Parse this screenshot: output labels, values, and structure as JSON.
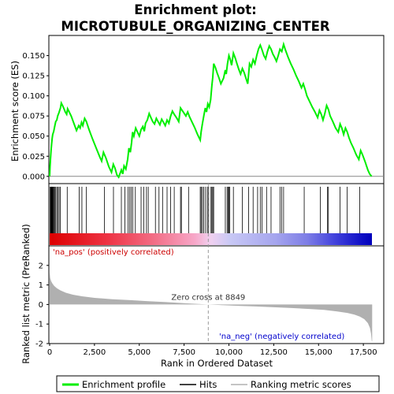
{
  "chart_data": [
    {
      "type": "line",
      "title_line1": "Enrichment plot:",
      "title_line2": "MICROTUBULE_ORGANIZING_CENTER",
      "ylabel": "Enrichment score (ES)",
      "ylim": [
        -0.009,
        0.175
      ],
      "yticks": [
        0.0,
        0.025,
        0.05,
        0.075,
        0.1,
        0.125,
        0.15
      ],
      "ytick_labels": [
        "0.000",
        "0.025",
        "0.050",
        "0.075",
        "0.100",
        "0.125",
        "0.150"
      ],
      "series": [
        {
          "name": "Enrichment profile",
          "color": "#00ee00",
          "points": [
            [
              0,
              0.0
            ],
            [
              20,
              0.012
            ],
            [
              50,
              0.022
            ],
            [
              80,
              0.032
            ],
            [
              110,
              0.04
            ],
            [
              140,
              0.047
            ],
            [
              170,
              0.052
            ],
            [
              230,
              0.056
            ],
            [
              280,
              0.062
            ],
            [
              340,
              0.068
            ],
            [
              400,
              0.07
            ],
            [
              450,
              0.075
            ],
            [
              520,
              0.079
            ],
            [
              600,
              0.085
            ],
            [
              650,
              0.091
            ],
            [
              720,
              0.088
            ],
            [
              800,
              0.084
            ],
            [
              870,
              0.08
            ],
            [
              950,
              0.077
            ],
            [
              1000,
              0.084
            ],
            [
              1070,
              0.081
            ],
            [
              1200,
              0.075
            ],
            [
              1350,
              0.066
            ],
            [
              1500,
              0.057
            ],
            [
              1620,
              0.063
            ],
            [
              1700,
              0.06
            ],
            [
              1780,
              0.067
            ],
            [
              1850,
              0.063
            ],
            [
              1950,
              0.072
            ],
            [
              2050,
              0.068
            ],
            [
              2200,
              0.058
            ],
            [
              2400,
              0.046
            ],
            [
              2600,
              0.035
            ],
            [
              2800,
              0.024
            ],
            [
              2900,
              0.019
            ],
            [
              3000,
              0.03
            ],
            [
              3150,
              0.022
            ],
            [
              3300,
              0.012
            ],
            [
              3450,
              0.005
            ],
            [
              3550,
              0.015
            ],
            [
              3650,
              0.01
            ],
            [
              3750,
              0.002
            ],
            [
              3850,
              -0.001
            ],
            [
              3950,
              0.005
            ],
            [
              4000,
              0.008
            ],
            [
              4080,
              0.003
            ],
            [
              4150,
              0.013
            ],
            [
              4250,
              0.009
            ],
            [
              4350,
              0.021
            ],
            [
              4420,
              0.035
            ],
            [
              4500,
              0.03
            ],
            [
              4570,
              0.042
            ],
            [
              4630,
              0.055
            ],
            [
              4700,
              0.05
            ],
            [
              4800,
              0.06
            ],
            [
              4900,
              0.055
            ],
            [
              5000,
              0.05
            ],
            [
              5100,
              0.058
            ],
            [
              5200,
              0.062
            ],
            [
              5280,
              0.056
            ],
            [
              5350,
              0.066
            ],
            [
              5450,
              0.07
            ],
            [
              5550,
              0.078
            ],
            [
              5650,
              0.073
            ],
            [
              5750,
              0.068
            ],
            [
              5850,
              0.065
            ],
            [
              5950,
              0.072
            ],
            [
              6050,
              0.068
            ],
            [
              6150,
              0.064
            ],
            [
              6250,
              0.071
            ],
            [
              6350,
              0.067
            ],
            [
              6450,
              0.063
            ],
            [
              6550,
              0.07
            ],
            [
              6650,
              0.066
            ],
            [
              6750,
              0.075
            ],
            [
              6850,
              0.081
            ],
            [
              6950,
              0.077
            ],
            [
              7100,
              0.072
            ],
            [
              7200,
              0.068
            ],
            [
              7300,
              0.085
            ],
            [
              7450,
              0.08
            ],
            [
              7600,
              0.075
            ],
            [
              7700,
              0.08
            ],
            [
              7800,
              0.074
            ],
            [
              7950,
              0.067
            ],
            [
              8100,
              0.06
            ],
            [
              8250,
              0.052
            ],
            [
              8400,
              0.045
            ],
            [
              8450,
              0.055
            ],
            [
              8520,
              0.065
            ],
            [
              8600,
              0.075
            ],
            [
              8680,
              0.085
            ],
            [
              8750,
              0.08
            ],
            [
              8820,
              0.09
            ],
            [
              8900,
              0.086
            ],
            [
              8980,
              0.095
            ],
            [
              9050,
              0.113
            ],
            [
              9100,
              0.123
            ],
            [
              9150,
              0.14
            ],
            [
              9250,
              0.135
            ],
            [
              9350,
              0.128
            ],
            [
              9450,
              0.122
            ],
            [
              9550,
              0.115
            ],
            [
              9700,
              0.122
            ],
            [
              9800,
              0.132
            ],
            [
              9850,
              0.127
            ],
            [
              9920,
              0.14
            ],
            [
              10000,
              0.15
            ],
            [
              10080,
              0.145
            ],
            [
              10150,
              0.138
            ],
            [
              10250,
              0.153
            ],
            [
              10350,
              0.147
            ],
            [
              10450,
              0.14
            ],
            [
              10550,
              0.133
            ],
            [
              10650,
              0.127
            ],
            [
              10750,
              0.134
            ],
            [
              10850,
              0.129
            ],
            [
              10950,
              0.122
            ],
            [
              11050,
              0.115
            ],
            [
              11150,
              0.14
            ],
            [
              11250,
              0.136
            ],
            [
              11350,
              0.145
            ],
            [
              11450,
              0.14
            ],
            [
              11550,
              0.15
            ],
            [
              11650,
              0.158
            ],
            [
              11750,
              0.163
            ],
            [
              11850,
              0.157
            ],
            [
              11950,
              0.15
            ],
            [
              12050,
              0.146
            ],
            [
              12150,
              0.155
            ],
            [
              12250,
              0.162
            ],
            [
              12350,
              0.158
            ],
            [
              12450,
              0.152
            ],
            [
              12550,
              0.148
            ],
            [
              12650,
              0.143
            ],
            [
              12750,
              0.15
            ],
            [
              12850,
              0.158
            ],
            [
              12950,
              0.155
            ],
            [
              13050,
              0.164
            ],
            [
              13150,
              0.157
            ],
            [
              13300,
              0.148
            ],
            [
              13450,
              0.14
            ],
            [
              13600,
              0.133
            ],
            [
              13750,
              0.125
            ],
            [
              13900,
              0.118
            ],
            [
              14050,
              0.11
            ],
            [
              14150,
              0.115
            ],
            [
              14250,
              0.108
            ],
            [
              14350,
              0.1
            ],
            [
              14500,
              0.093
            ],
            [
              14650,
              0.086
            ],
            [
              14800,
              0.08
            ],
            [
              14950,
              0.073
            ],
            [
              15050,
              0.082
            ],
            [
              15150,
              0.077
            ],
            [
              15250,
              0.07
            ],
            [
              15350,
              0.078
            ],
            [
              15450,
              0.088
            ],
            [
              15550,
              0.083
            ],
            [
              15650,
              0.075
            ],
            [
              15800,
              0.068
            ],
            [
              15950,
              0.06
            ],
            [
              16100,
              0.055
            ],
            [
              16200,
              0.065
            ],
            [
              16300,
              0.06
            ],
            [
              16400,
              0.052
            ],
            [
              16500,
              0.06
            ],
            [
              16600,
              0.055
            ],
            [
              16700,
              0.048
            ],
            [
              16800,
              0.042
            ],
            [
              16950,
              0.035
            ],
            [
              17100,
              0.027
            ],
            [
              17250,
              0.021
            ],
            [
              17350,
              0.032
            ],
            [
              17450,
              0.027
            ],
            [
              17600,
              0.018
            ],
            [
              17750,
              0.008
            ],
            [
              17850,
              0.003
            ],
            [
              17960,
              0.0
            ]
          ]
        }
      ]
    },
    {
      "type": "hits",
      "series": [
        {
          "name": "Hits",
          "positions": [
            30,
            50,
            75,
            100,
            120,
            145,
            170,
            200,
            240,
            280,
            340,
            400,
            460,
            530,
            600,
            980,
            1650,
            1800,
            2050,
            3050,
            3560,
            4000,
            4200,
            4380,
            4470,
            4550,
            4640,
            4780,
            5100,
            5250,
            5400,
            5500,
            5900,
            6100,
            6300,
            6550,
            6750,
            6950,
            7300,
            7350,
            7750,
            8400,
            8450,
            8520,
            8600,
            8700,
            8800,
            8870,
            9000,
            9050,
            9100,
            9150,
            9800,
            9900,
            9950,
            10000,
            10050,
            10250,
            10750,
            11100,
            11350,
            11600,
            11750,
            11850,
            12100,
            12350,
            12850,
            12950,
            13050,
            14200,
            15100,
            15500,
            15550,
            16200,
            16600,
            17300
          ]
        }
      ]
    },
    {
      "type": "area",
      "xlabel": "Rank in Ordered Dataset",
      "ylabel": "Ranked list metric (PreRanked)",
      "ylim": [
        -2,
        3
      ],
      "yticks": [
        -2,
        -1,
        0,
        1,
        2
      ],
      "xlim": [
        0,
        18000
      ],
      "xticks": [
        0,
        2500,
        5000,
        7500,
        10000,
        12500,
        15000,
        17500
      ],
      "xtick_labels": [
        "0",
        "2,500",
        "5,000",
        "7,500",
        "10,000",
        "12,500",
        "15,000",
        "17,500"
      ],
      "zero_cross": 8849,
      "zero_cross_label": "Zero cross at 8849",
      "pos_label": "'na_pos' (positively correlated)",
      "neg_label": "'na_neg' (negatively correlated)",
      "series": [
        {
          "name": "Ranking metric scores",
          "color": "#b0b0b0",
          "points": [
            [
              0,
              1.65
            ],
            [
              30,
              1.35
            ],
            [
              80,
              1.2
            ],
            [
              150,
              1.08
            ],
            [
              250,
              0.95
            ],
            [
              400,
              0.83
            ],
            [
              600,
              0.72
            ],
            [
              900,
              0.6
            ],
            [
              1300,
              0.5
            ],
            [
              1800,
              0.42
            ],
            [
              2500,
              0.34
            ],
            [
              3500,
              0.27
            ],
            [
              4500,
              0.22
            ],
            [
              5500,
              0.17
            ],
            [
              6500,
              0.12
            ],
            [
              7500,
              0.07
            ],
            [
              8300,
              0.03
            ],
            [
              8849,
              0.0
            ],
            [
              9500,
              -0.03
            ],
            [
              10500,
              -0.07
            ],
            [
              11500,
              -0.1
            ],
            [
              12500,
              -0.14
            ],
            [
              13500,
              -0.18
            ],
            [
              14500,
              -0.23
            ],
            [
              15300,
              -0.28
            ],
            [
              16000,
              -0.35
            ],
            [
              16600,
              -0.43
            ],
            [
              17000,
              -0.52
            ],
            [
              17300,
              -0.62
            ],
            [
              17550,
              -0.75
            ],
            [
              17750,
              -0.95
            ],
            [
              17870,
              -1.2
            ],
            [
              17930,
              -1.5
            ],
            [
              17970,
              -1.87
            ],
            [
              17990,
              -1.9
            ]
          ]
        }
      ]
    }
  ],
  "legend": {
    "items": [
      {
        "label": "Enrichment profile",
        "color": "#00ee00"
      },
      {
        "label": "Hits",
        "color": "#000000"
      },
      {
        "label": "Ranking metric scores",
        "color": "#b0b0b0"
      }
    ]
  }
}
